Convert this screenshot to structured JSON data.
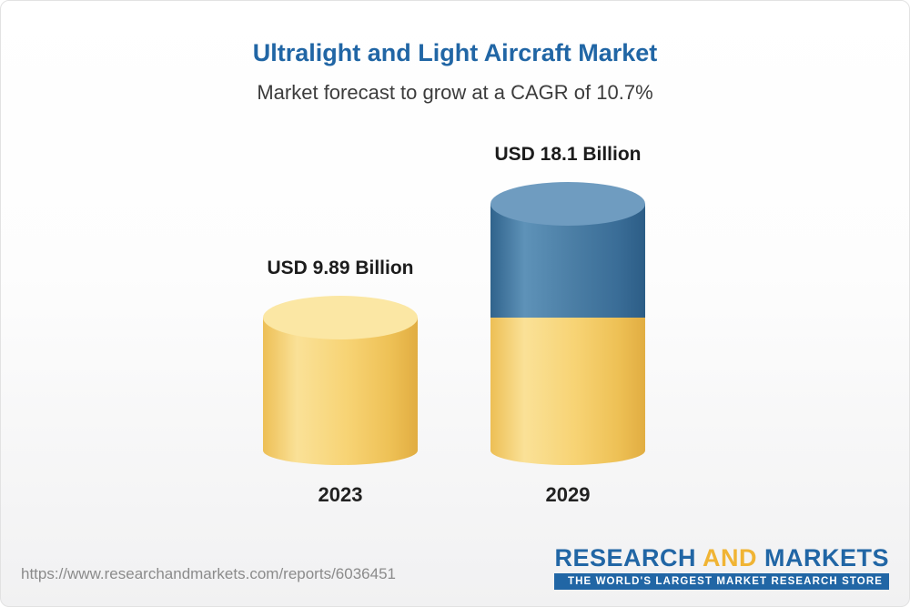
{
  "header": {
    "title": "Ultralight and Light Aircraft Market",
    "subtitle": "Market forecast to grow at a CAGR of 10.7%"
  },
  "chart_data": {
    "type": "bar",
    "subtype": "3d-cylinder-stacked",
    "title": "Ultralight and Light Aircraft Market",
    "subtitle": "Market forecast to grow at a CAGR of 10.7%",
    "categories": [
      "2023",
      "2029"
    ],
    "values": [
      9.89,
      18.1
    ],
    "value_labels": [
      "USD 9.89 Billion",
      "USD 18.1 Billion"
    ],
    "unit": "USD Billion",
    "cagr_percent": 10.7,
    "colors": {
      "base_segment": "#f6cd62",
      "growth_segment": "#3d74a3"
    },
    "layout": "2029 bar is stacked: yellow base segment equals 2023 value (9.89), blue growth segment is the remainder (8.21)"
  },
  "footer": {
    "url": "https://www.researchandmarkets.com/reports/6036451",
    "logo": {
      "word1": "RESEARCH",
      "word2": "AND",
      "word3": "MARKETS",
      "tagline": "THE WORLD'S LARGEST MARKET RESEARCH STORE"
    }
  }
}
